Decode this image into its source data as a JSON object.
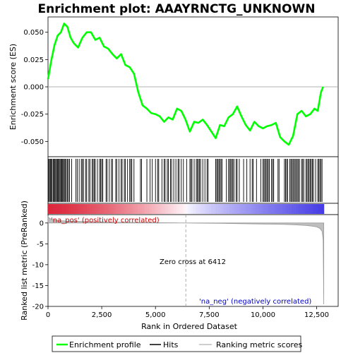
{
  "chart_data": {
    "type": "line",
    "title": "Enrichment plot: AAAYRNCTG_UNKNOWN",
    "x_label": "Rank in Ordered Dataset",
    "x_range": [
      0,
      13500
    ],
    "x_ticks": [
      0,
      2500,
      5000,
      7500,
      10000,
      12500
    ],
    "x_tick_labels": [
      "0",
      "2,500",
      "5,000",
      "7,500",
      "10,000",
      "12,500"
    ],
    "es_panel": {
      "ylabel": "Enrichment score (ES)",
      "ylim": [
        -0.064,
        0.064
      ],
      "y_ticks": [
        0.05,
        0.025,
        0.0,
        -0.025,
        -0.05
      ],
      "y_tick_labels": [
        "0.050",
        "0.025",
        "0.000",
        "-0.025",
        "-0.050"
      ],
      "series": {
        "name": "Enrichment profile",
        "color": "#00ff00",
        "x": [
          0,
          150,
          300,
          450,
          600,
          750,
          900,
          1050,
          1200,
          1400,
          1600,
          1800,
          2000,
          2200,
          2400,
          2600,
          2800,
          3000,
          3200,
          3400,
          3600,
          3800,
          4000,
          4200,
          4400,
          4600,
          4800,
          5000,
          5200,
          5400,
          5600,
          5800,
          6000,
          6200,
          6400,
          6600,
          6800,
          7000,
          7200,
          7400,
          7600,
          7800,
          8000,
          8200,
          8400,
          8600,
          8800,
          9000,
          9200,
          9400,
          9600,
          9800,
          10000,
          10200,
          10400,
          10600,
          10800,
          11000,
          11200,
          11400,
          11600,
          11800,
          12000,
          12200,
          12400,
          12550,
          12700,
          12800
        ],
        "y": [
          0.007,
          0.024,
          0.038,
          0.047,
          0.05,
          0.058,
          0.055,
          0.045,
          0.04,
          0.036,
          0.045,
          0.05,
          0.05,
          0.043,
          0.045,
          0.037,
          0.035,
          0.03,
          0.026,
          0.03,
          0.02,
          0.018,
          0.012,
          -0.005,
          -0.017,
          -0.02,
          -0.024,
          -0.025,
          -0.027,
          -0.032,
          -0.028,
          -0.03,
          -0.02,
          -0.022,
          -0.03,
          -0.041,
          -0.032,
          -0.033,
          -0.03,
          -0.035,
          -0.041,
          -0.047,
          -0.035,
          -0.036,
          -0.028,
          -0.025,
          -0.018,
          -0.027,
          -0.035,
          -0.04,
          -0.032,
          -0.036,
          -0.038,
          -0.036,
          -0.035,
          -0.033,
          -0.046,
          -0.05,
          -0.053,
          -0.045,
          -0.025,
          -0.022,
          -0.027,
          -0.025,
          -0.02,
          -0.022,
          -0.005,
          0.0
        ]
      }
    },
    "hits_panel": {
      "series_name": "Hits",
      "color": "#000000",
      "hit_ranks": [
        30,
        70,
        110,
        150,
        190,
        240,
        280,
        320,
        360,
        400,
        440,
        480,
        520,
        560,
        600,
        640,
        680,
        720,
        760,
        800,
        850,
        900,
        950,
        1000,
        1100,
        1300,
        1360,
        1450,
        1550,
        1600,
        1650,
        1750,
        1800,
        1900,
        1950,
        2050,
        2100,
        2150,
        2200,
        2300,
        2400,
        2450,
        2500,
        2550,
        2700,
        2750,
        2850,
        2950,
        3000,
        3150,
        3200,
        3300,
        3400,
        3450,
        3550,
        3600,
        3700,
        3800,
        3850,
        3900,
        4000,
        4300,
        4350,
        4600,
        4750,
        4850,
        5000,
        5100,
        5150,
        5300,
        5400,
        5450,
        5550,
        5600,
        5700,
        5750,
        5850,
        5950,
        6050,
        6100,
        6200,
        6300,
        6450,
        6600,
        6650,
        6700,
        6800,
        6900,
        6950,
        7000,
        7050,
        7100,
        7200,
        7300,
        7400,
        7450,
        7800,
        7850,
        7900,
        7950,
        8000,
        8050,
        8100,
        8300,
        8400,
        8450,
        8500,
        8550,
        8600,
        8650,
        8750,
        8800,
        8900,
        9100,
        9250,
        9400,
        9500,
        9550,
        9700,
        9900,
        10000,
        10050,
        10100,
        10150,
        10200,
        10250,
        10300,
        10400,
        10450,
        10500,
        10700,
        10750,
        11000,
        11050,
        11100,
        11150,
        11250,
        11300,
        11350,
        11400,
        11450,
        11500,
        11550,
        11600,
        11650,
        11700,
        11800,
        11850,
        11900,
        12000,
        12050,
        12100,
        12150,
        12200,
        12250,
        12300,
        12350,
        12450,
        12550,
        12600,
        12650,
        12700,
        12750
      ]
    },
    "metric_panel": {
      "ylabel": "Ranked list metric (PreRanked)",
      "ylim": [
        -20,
        2
      ],
      "y_ticks": [
        0,
        -5,
        -10,
        -15,
        -20
      ],
      "y_tick_labels": [
        "0",
        "-5",
        "-10",
        "-15",
        "-20"
      ],
      "series": {
        "name": "Ranking metric scores",
        "color": "#bebebe",
        "x": [
          0,
          50,
          150,
          300,
          600,
          1000,
          2000,
          3000,
          4000,
          5000,
          6000,
          6412,
          7000,
          8000,
          9000,
          10000,
          11000,
          11500,
          12000,
          12300,
          12500,
          12650,
          12750,
          12800,
          12830
        ],
        "y": [
          1.6,
          1.2,
          0.9,
          0.7,
          0.55,
          0.45,
          0.3,
          0.2,
          0.12,
          0.07,
          0.02,
          0.0,
          -0.04,
          -0.1,
          -0.17,
          -0.25,
          -0.35,
          -0.45,
          -0.6,
          -0.75,
          -0.95,
          -1.3,
          -2.0,
          -4.0,
          -19.5
        ]
      },
      "zero_cross_label": "Zero cross at 6412",
      "zero_cross_rank": 6412,
      "pos_label": "'na_pos' (positively correlated)",
      "neg_label": "'na_neg' (negatively correlated)",
      "pos_color": "#cc0000",
      "neg_color": "#0000cc"
    },
    "legend": {
      "placement": "bottom",
      "items": [
        {
          "label": "Enrichment profile",
          "color": "#00ff00"
        },
        {
          "label": "Hits",
          "color": "#000000"
        },
        {
          "label": "Ranking metric scores",
          "color": "#bebebe"
        }
      ]
    }
  }
}
